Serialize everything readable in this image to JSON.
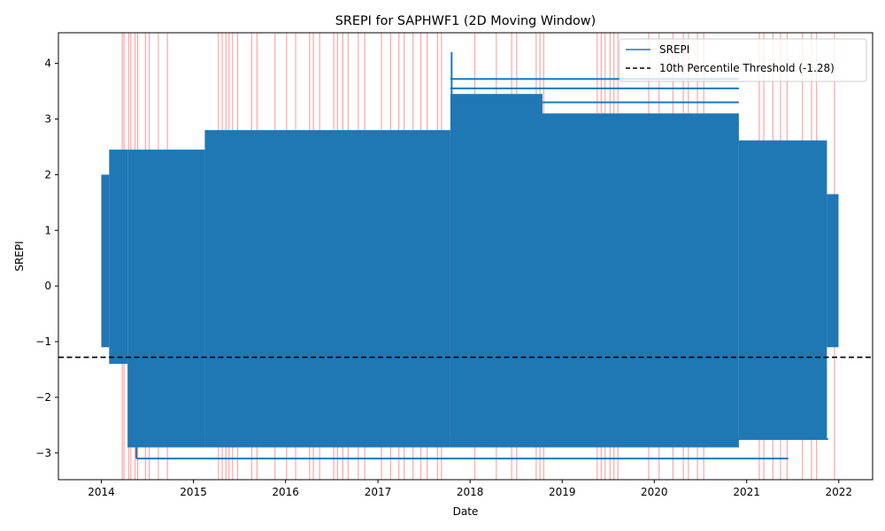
{
  "chart_data": {
    "type": "line",
    "title": "SREPI for SAPHWF1 (2D Moving Window)",
    "xlabel": "Date",
    "ylabel": "SREPI",
    "x_ticks": [
      "2014",
      "2015",
      "2016",
      "2017",
      "2018",
      "2019",
      "2020",
      "2021",
      "2022"
    ],
    "y_ticks": [
      {
        "value": -3,
        "label": "−3"
      },
      {
        "value": -2,
        "label": "−2"
      },
      {
        "value": -1,
        "label": "−1"
      },
      {
        "value": 0,
        "label": "0"
      },
      {
        "value": 1,
        "label": "1"
      },
      {
        "value": 2,
        "label": "2"
      },
      {
        "value": 3,
        "label": "3"
      },
      {
        "value": 4,
        "label": "4"
      }
    ],
    "xlim": [
      "2013-07-15",
      "2022-05-15"
    ],
    "ylim": [
      -3.48,
      4.55
    ],
    "grid": false,
    "legend_position": "top-right",
    "threshold": {
      "value": -1.28,
      "label": "10th Percentile Threshold (-1.28)",
      "color": "#000000",
      "style": "dashed"
    },
    "series": [
      {
        "name": "SREPI",
        "color": "#1f77b4",
        "segments": [
          {
            "x_start": "2014-01-01",
            "x_end": "2014-02-01",
            "y_min": -1.1,
            "y_max": 2.0
          },
          {
            "x_start": "2014-02-01",
            "x_end": "2014-04-15",
            "y_min": -1.4,
            "y_max": 2.45
          },
          {
            "x_start": "2014-04-15",
            "x_end": "2015-02-15",
            "y_min": -2.9,
            "y_max": 2.45
          },
          {
            "x_start": "2015-02-15",
            "x_end": "2017-10-15",
            "y_min": -2.9,
            "y_max": 2.8
          },
          {
            "x_start": "2017-10-15",
            "x_end": "2018-10-15",
            "y_min": -2.9,
            "y_max": 3.45
          },
          {
            "x_start": "2018-10-15",
            "x_end": "2020-12-01",
            "y_min": -2.9,
            "y_max": 3.1
          },
          {
            "x_start": "2020-12-01",
            "x_end": "2021-11-15",
            "y_min": -2.75,
            "y_max": 2.6
          },
          {
            "x_start": "2021-11-15",
            "x_end": "2021-12-31",
            "y_min": -1.1,
            "y_max": 1.65
          }
        ],
        "extremes": [
          {
            "date": "2017-10-20",
            "value": 4.2
          },
          {
            "date": "2014-05-20",
            "value": -3.1
          }
        ]
      }
    ],
    "drought_markers": {
      "color": "#ff0000",
      "dates": [
        "2014-03-25",
        "2014-04-01",
        "2014-04-20",
        "2014-04-28",
        "2014-05-15",
        "2014-05-25",
        "2014-06-25",
        "2014-07-10",
        "2014-08-15",
        "2014-09-20",
        "2015-04-10",
        "2015-04-25",
        "2015-05-10",
        "2015-05-22",
        "2015-06-05",
        "2015-06-25",
        "2015-08-20",
        "2015-09-10",
        "2015-11-20",
        "2016-01-05",
        "2016-02-10",
        "2016-04-05",
        "2016-04-20",
        "2016-05-15",
        "2016-07-10",
        "2016-07-25",
        "2016-08-15",
        "2016-09-05",
        "2016-10-15",
        "2016-11-10",
        "2017-01-15",
        "2017-02-20",
        "2017-03-25",
        "2017-04-15",
        "2017-05-20",
        "2017-06-20",
        "2017-07-15",
        "2017-08-25",
        "2017-09-10",
        "2018-01-20",
        "2018-04-15",
        "2018-06-15",
        "2018-07-05",
        "2018-09-20",
        "2018-10-05",
        "2018-10-20",
        "2019-05-20",
        "2019-06-05",
        "2019-06-20",
        "2019-07-10",
        "2019-07-25",
        "2019-08-10",
        "2019-12-10",
        "2020-01-20",
        "2020-03-15",
        "2020-04-25",
        "2020-05-15",
        "2020-06-20",
        "2020-07-15",
        "2021-02-20",
        "2021-03-10",
        "2021-04-15",
        "2021-05-15",
        "2021-06-10",
        "2021-08-10",
        "2021-09-15",
        "2021-10-05",
        "2021-12-15"
      ]
    }
  }
}
